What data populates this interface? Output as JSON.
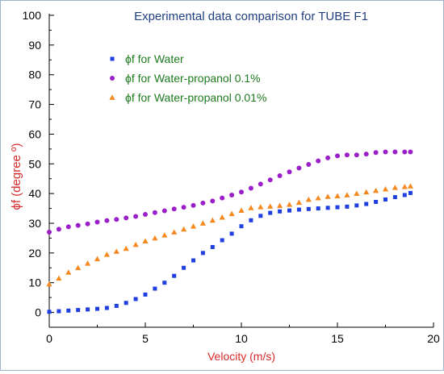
{
  "chart_data": {
    "type": "scatter",
    "title": "Experimental data comparison for TUBE F1",
    "xlabel": "Velocity (m/s)",
    "ylabel": "ϕf (degree º)",
    "xlim": [
      0,
      20
    ],
    "ylim": [
      -5,
      100
    ],
    "xticks": [
      0,
      5,
      10,
      15,
      20
    ],
    "yticks": [
      0,
      10,
      20,
      30,
      40,
      50,
      60,
      70,
      80,
      90,
      100
    ],
    "grid": false,
    "legend_position": "top-left",
    "series": [
      {
        "name": "ϕf for Water",
        "color": "#1f3fe0",
        "marker": "square",
        "x": [
          0.0,
          0.5,
          1.0,
          1.5,
          2.0,
          2.5,
          3.0,
          3.5,
          4.0,
          4.5,
          5.0,
          5.5,
          6.0,
          6.5,
          7.0,
          7.5,
          8.0,
          8.5,
          9.0,
          9.5,
          10.0,
          10.5,
          11.0,
          11.5,
          12.0,
          12.5,
          13.0,
          13.5,
          14.0,
          14.5,
          15.0,
          15.5,
          16.0,
          16.5,
          17.0,
          17.5,
          18.0,
          18.5,
          18.8
        ],
        "y": [
          0.2,
          0.4,
          0.6,
          0.8,
          1.0,
          1.2,
          1.5,
          2.2,
          3.2,
          4.5,
          6.0,
          8.0,
          10.0,
          12.3,
          15.0,
          17.5,
          20.0,
          22.0,
          24.3,
          26.5,
          29.0,
          31.0,
          32.5,
          33.5,
          34.0,
          34.3,
          34.6,
          34.8,
          35.0,
          35.2,
          35.4,
          35.6,
          36.0,
          36.5,
          37.2,
          38.0,
          38.8,
          39.5,
          40.2
        ]
      },
      {
        "name": "ϕf for Water-propanol 0.1%",
        "color": "#9b1fc8",
        "marker": "circle",
        "x": [
          0.0,
          0.5,
          1.0,
          1.5,
          2.0,
          2.5,
          3.0,
          3.5,
          4.0,
          4.5,
          5.0,
          5.5,
          6.0,
          6.5,
          7.0,
          7.5,
          8.0,
          8.5,
          9.0,
          9.5,
          10.0,
          10.5,
          11.0,
          11.5,
          12.0,
          12.5,
          13.0,
          13.5,
          14.0,
          14.5,
          15.0,
          15.5,
          16.0,
          16.5,
          17.0,
          17.5,
          18.0,
          18.5,
          18.8
        ],
        "y": [
          27.0,
          28.0,
          28.8,
          29.3,
          29.8,
          30.4,
          30.9,
          31.3,
          31.8,
          32.3,
          33.0,
          33.6,
          34.2,
          34.8,
          35.4,
          36.0,
          36.8,
          37.5,
          38.5,
          39.5,
          40.5,
          41.8,
          43.2,
          44.6,
          46.0,
          47.3,
          48.6,
          49.8,
          51.0,
          52.0,
          52.7,
          53.0,
          53.0,
          53.3,
          53.8,
          54.0,
          54.0,
          54.0,
          54.0
        ]
      },
      {
        "name": "ϕf for Water-propanol 0.01%",
        "color": "#f5891f",
        "marker": "triangle",
        "x": [
          0.0,
          0.5,
          1.0,
          1.5,
          2.0,
          2.5,
          3.0,
          3.5,
          4.0,
          4.5,
          5.0,
          5.5,
          6.0,
          6.5,
          7.0,
          7.5,
          8.0,
          8.5,
          9.0,
          9.5,
          10.0,
          10.5,
          11.0,
          11.5,
          12.0,
          12.5,
          13.0,
          13.5,
          14.0,
          14.5,
          15.0,
          15.5,
          16.0,
          16.5,
          17.0,
          17.5,
          18.0,
          18.5,
          18.8
        ],
        "y": [
          9.5,
          11.5,
          13.5,
          15.0,
          16.5,
          18.0,
          19.5,
          20.5,
          21.5,
          22.8,
          24.0,
          25.0,
          26.0,
          27.0,
          28.0,
          29.0,
          30.0,
          31.0,
          32.0,
          33.2,
          34.3,
          35.2,
          35.5,
          35.7,
          35.9,
          36.3,
          37.0,
          38.0,
          38.5,
          39.0,
          39.2,
          39.5,
          40.0,
          40.5,
          41.0,
          41.5,
          42.0,
          42.3,
          42.5
        ]
      }
    ]
  }
}
